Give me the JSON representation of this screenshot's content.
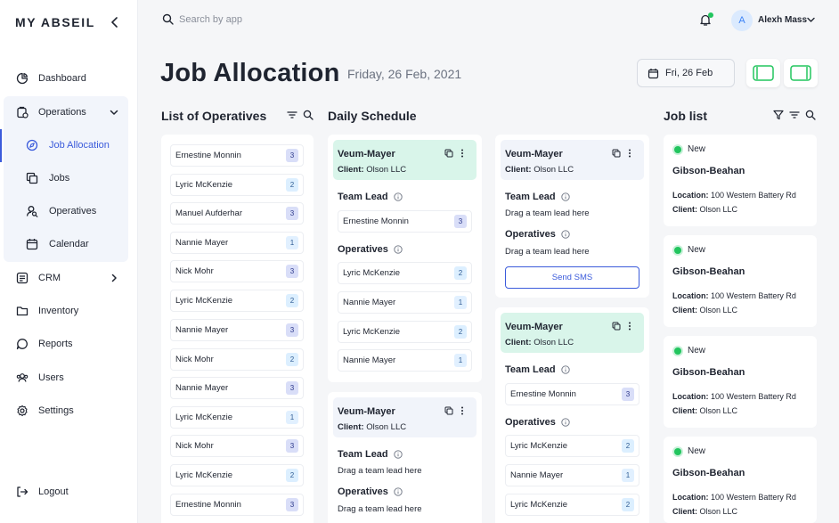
{
  "app": {
    "brand": "MY ABSEIL"
  },
  "sidebar": {
    "items": [
      {
        "label": "Dashboard",
        "icon": "dashboard-icon"
      },
      {
        "label": "Operations",
        "icon": "operations-icon"
      },
      {
        "label": "Job Allocation",
        "icon": "compass-icon"
      },
      {
        "label": "Jobs",
        "icon": "copy-icon"
      },
      {
        "label": "Operatives",
        "icon": "user-search-icon"
      },
      {
        "label": "Calendar",
        "icon": "calendar-icon"
      },
      {
        "label": "CRM",
        "icon": "crm-icon"
      },
      {
        "label": "Inventory",
        "icon": "folder-icon"
      },
      {
        "label": "Reports",
        "icon": "chat-icon"
      },
      {
        "label": "Users",
        "icon": "users-icon"
      },
      {
        "label": "Settings",
        "icon": "gear-icon"
      }
    ],
    "logout": "Logout"
  },
  "topbar": {
    "search_placeholder": "Search by app",
    "user_initial": "A",
    "user_name": "Alexh Mass"
  },
  "header": {
    "title": "Job Allocation",
    "date": "Friday, 26 Feb, 2021",
    "date_button": "Fri, 26 Feb"
  },
  "operatives": {
    "title": "List of Operatives",
    "items": [
      {
        "name": "Ernestine Monnin",
        "count": "3"
      },
      {
        "name": "Lyric McKenzie",
        "count": "2"
      },
      {
        "name": "Manuel Aufderhar",
        "count": "3"
      },
      {
        "name": "Nannie Mayer",
        "count": "1"
      },
      {
        "name": "Nick Mohr",
        "count": "3"
      },
      {
        "name": "Lyric McKenzie",
        "count": "2"
      },
      {
        "name": "Nannie Mayer",
        "count": "3"
      },
      {
        "name": "Nick Mohr",
        "count": "2"
      },
      {
        "name": "Nannie Mayer",
        "count": "3"
      },
      {
        "name": "Lyric McKenzie",
        "count": "1"
      },
      {
        "name": "Nick Mohr",
        "count": "3"
      },
      {
        "name": "Lyric McKenzie",
        "count": "2"
      },
      {
        "name": "Ernestine Monnin",
        "count": "3"
      }
    ]
  },
  "schedule": {
    "title": "Daily Schedule",
    "team_lead_label": "Team Lead",
    "operatives_label": "Operatives",
    "drag_lead_hint": "Drag a team lead here",
    "send_sms": "Send SMS",
    "client_prefix": "Client:",
    "cards": [
      {
        "name": "Veum-Mayer",
        "client": "Olson LLC",
        "lead": {
          "name": "Ernestine Monnin",
          "count": "3"
        },
        "operatives": [
          {
            "name": "Lyric McKenzie",
            "count": "2"
          },
          {
            "name": "Nannie Mayer",
            "count": "1"
          },
          {
            "name": "Lyric McKenzie",
            "count": "2"
          },
          {
            "name": "Nannie Mayer",
            "count": "1"
          }
        ]
      },
      {
        "name": "Veum-Mayer",
        "client": "Olson LLC"
      },
      {
        "name": "Veum-Mayer",
        "client": "Olson LLC"
      },
      {
        "name": "Veum-Mayer",
        "client": "Olson LLC",
        "lead": {
          "name": "Ernestine Monnin",
          "count": "3"
        },
        "operatives": [
          {
            "name": "Lyric McKenzie",
            "count": "2"
          },
          {
            "name": "Nannie Mayer",
            "count": "1"
          },
          {
            "name": "Lyric McKenzie",
            "count": "2"
          }
        ]
      }
    ]
  },
  "joblist": {
    "title": "Job list",
    "location_prefix": "Location:",
    "client_prefix": "Client:",
    "items": [
      {
        "status": "New",
        "name": "Gibson-Beahan",
        "location": "100 Western Battery Rd",
        "client": "Olson LLC"
      },
      {
        "status": "New",
        "name": "Gibson-Beahan",
        "location": "100 Western Battery Rd",
        "client": "Olson LLC"
      },
      {
        "status": "New",
        "name": "Gibson-Beahan",
        "location": "100 Western Battery Rd",
        "client": "Olson LLC"
      },
      {
        "status": "New",
        "name": "Gibson-Beahan",
        "location": "100 Western Battery Rd",
        "client": "Olson LLC"
      }
    ]
  },
  "colors": {
    "accent": "#3b5bdb",
    "green": "#22c55e",
    "card_green": "#d9f5ea",
    "view_toggle": "#22c55e"
  }
}
